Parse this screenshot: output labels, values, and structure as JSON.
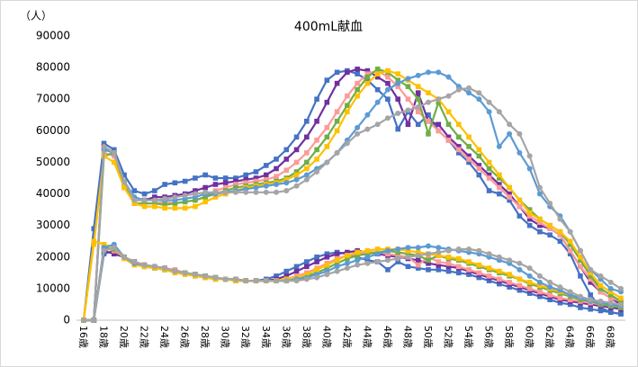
{
  "chart_data": {
    "type": "line",
    "title": "400mL献血",
    "y_label": "（人）",
    "categories": [
      "16歳",
      null,
      "18歳",
      null,
      "20歳",
      null,
      "22歳",
      null,
      "24歳",
      null,
      "26歳",
      null,
      "28歳",
      null,
      "30歳",
      null,
      "32歳",
      null,
      "34歳",
      null,
      "36歳",
      null,
      "38歳",
      null,
      "40歳",
      null,
      "42歳",
      null,
      "44歳",
      null,
      "46歳",
      null,
      "48歳",
      null,
      "50歳",
      null,
      "52歳",
      null,
      "54歳",
      null,
      "56歳",
      null,
      "58歳",
      null,
      "60歳",
      null,
      "62歳",
      null,
      "64歳",
      null,
      "66歳",
      null,
      "68歳",
      null
    ],
    "ylim": [
      0,
      90000
    ],
    "yticks": [
      0,
      10000,
      20000,
      30000,
      40000,
      50000,
      60000,
      70000,
      80000,
      90000
    ],
    "grid": false,
    "series": [
      {
        "color": "#4472c4",
        "marker": "square",
        "values": [
          0,
          29000,
          56000,
          54000,
          46000,
          41000,
          40000,
          41000,
          43000,
          43500,
          44000,
          45000,
          46000,
          45000,
          45000,
          45000,
          46000,
          47000,
          49000,
          51000,
          54000,
          58000,
          63000,
          70000,
          76000,
          78500,
          79000,
          78000,
          76000,
          73000,
          70000,
          60500,
          66000,
          62000,
          65000,
          60000,
          57000,
          53000,
          50000,
          46000,
          41000,
          40000,
          38000,
          33000,
          30000,
          28000,
          27000,
          25000,
          21000,
          14000,
          8000,
          4000,
          2500,
          2000
        ]
      },
      {
        "color": "#7030a0",
        "marker": "square",
        "values": [
          0,
          0,
          55000,
          53000,
          43000,
          38000,
          38000,
          39000,
          39000,
          39500,
          40000,
          41000,
          42000,
          43000,
          43500,
          44000,
          44500,
          45000,
          46000,
          48000,
          51000,
          54000,
          58000,
          63000,
          69000,
          75000,
          78500,
          79500,
          79000,
          77000,
          75000,
          70000,
          62000,
          72000,
          63000,
          62000,
          58000,
          55000,
          52000,
          49000,
          46000,
          43000,
          40000,
          36000,
          32000,
          30000,
          29000,
          27000,
          22000,
          17000,
          12000,
          9000,
          7000,
          5000
        ]
      },
      {
        "color": "#ff9999",
        "marker": "square",
        "values": [
          0,
          0,
          53000,
          52000,
          42000,
          37000,
          37000,
          37000,
          37500,
          37000,
          37500,
          38000,
          39000,
          41000,
          42000,
          43000,
          43500,
          44000,
          44500,
          45500,
          47500,
          50000,
          53000,
          57000,
          61000,
          66000,
          71000,
          75000,
          78000,
          79000,
          77000,
          74000,
          70000,
          66000,
          63000,
          60000,
          57000,
          54000,
          51000,
          48000,
          45000,
          42000,
          39000,
          36000,
          33000,
          31000,
          29000,
          27000,
          22000,
          17000,
          13000,
          9000,
          7000,
          6000
        ]
      },
      {
        "color": "#70ad47",
        "marker": "square",
        "values": [
          0,
          0,
          52000,
          53000,
          43000,
          37000,
          37000,
          37000,
          36500,
          37000,
          37500,
          38000,
          39000,
          40000,
          41000,
          42000,
          42500,
          43000,
          43500,
          44000,
          45000,
          47000,
          50000,
          54000,
          58000,
          63000,
          68000,
          73000,
          77000,
          79500,
          78500,
          76000,
          74000,
          70000,
          59000,
          69000,
          62000,
          58000,
          55000,
          52000,
          48000,
          45000,
          42000,
          38000,
          35000,
          32000,
          30000,
          28000,
          24000,
          19000,
          14000,
          10000,
          8000,
          6000
        ]
      },
      {
        "color": "#ffc000",
        "marker": "square",
        "values": [
          0,
          24000,
          52000,
          50000,
          42000,
          37000,
          36000,
          36000,
          35500,
          35500,
          35500,
          36000,
          37500,
          39000,
          40000,
          41000,
          42000,
          42500,
          43000,
          43500,
          44500,
          46000,
          48000,
          51000,
          55000,
          60000,
          66000,
          71000,
          75000,
          78000,
          79000,
          78000,
          76000,
          74000,
          72000,
          70000,
          66000,
          62000,
          58000,
          54000,
          50000,
          46000,
          42000,
          38000,
          34000,
          32000,
          30000,
          28000,
          25000,
          20000,
          15000,
          11000,
          9000,
          7000
        ]
      },
      {
        "color": "#5b9bd5",
        "marker": "circle",
        "values": [
          0,
          0,
          54000,
          53000,
          44000,
          39000,
          38000,
          38000,
          38000,
          38000,
          38500,
          39000,
          40000,
          40000,
          40500,
          41000,
          41500,
          42000,
          42500,
          43000,
          43500,
          44500,
          46000,
          48000,
          50000,
          53000,
          57000,
          61000,
          65000,
          69000,
          73000,
          75000,
          76500,
          77500,
          78500,
          78500,
          77000,
          74000,
          72000,
          70000,
          66000,
          55000,
          59000,
          53000,
          48000,
          40000,
          36000,
          33000,
          28000,
          22000,
          16000,
          13000,
          10000,
          9000
        ]
      },
      {
        "color": "#a5a5a5",
        "marker": "circle",
        "values": [
          0,
          0,
          55000,
          53000,
          44000,
          38000,
          38000,
          38000,
          38500,
          39000,
          39500,
          40000,
          40500,
          40500,
          40500,
          40500,
          40500,
          40500,
          40500,
          40500,
          41000,
          42500,
          44500,
          47000,
          50000,
          53000,
          56000,
          59000,
          60500,
          62000,
          64000,
          65500,
          66500,
          67500,
          69000,
          70000,
          71000,
          73000,
          73500,
          72000,
          69000,
          66000,
          62000,
          59000,
          52000,
          42000,
          37000,
          32000,
          28000,
          22000,
          16000,
          14000,
          12000,
          10000
        ]
      },
      {
        "color": "#4472c4",
        "marker": "square",
        "values": [
          0,
          0,
          21000,
          22000,
          20000,
          18000,
          17000,
          16500,
          16000,
          15500,
          15000,
          14000,
          13500,
          13000,
          13000,
          12500,
          12500,
          12500,
          13000,
          14000,
          15500,
          17000,
          18500,
          20000,
          21000,
          21500,
          21000,
          20000,
          19000,
          18500,
          16000,
          18500,
          17000,
          16500,
          16000,
          16000,
          15500,
          15000,
          14500,
          13500,
          12500,
          11500,
          10500,
          9500,
          8500,
          7500,
          6500,
          5500,
          5000,
          4000,
          3500,
          3000,
          2500,
          2000
        ]
      },
      {
        "color": "#7030a0",
        "marker": "square",
        "values": [
          0,
          0,
          22000,
          21000,
          20000,
          18500,
          17500,
          17000,
          16500,
          15500,
          15000,
          14500,
          14000,
          13500,
          13000,
          13000,
          12500,
          12500,
          12500,
          13000,
          14000,
          15500,
          17000,
          18500,
          20000,
          21000,
          21500,
          22000,
          21500,
          21000,
          20500,
          20000,
          19500,
          19000,
          18000,
          17500,
          17000,
          16500,
          15500,
          14500,
          13500,
          12500,
          11500,
          10500,
          9500,
          8500,
          7500,
          6500,
          6000,
          5500,
          5000,
          4500,
          4000,
          3500
        ]
      },
      {
        "color": "#ff9999",
        "marker": "square",
        "values": [
          0,
          0,
          23000,
          22000,
          20000,
          18000,
          17500,
          17000,
          16500,
          16000,
          15000,
          14500,
          14000,
          13500,
          13000,
          13000,
          12500,
          12500,
          12500,
          12500,
          13000,
          14000,
          15000,
          16500,
          18000,
          19500,
          20500,
          21000,
          21500,
          21500,
          21000,
          20500,
          20000,
          17500,
          20000,
          18500,
          18000,
          17000,
          16000,
          15000,
          14000,
          13000,
          12000,
          11000,
          10000,
          9000,
          8000,
          7000,
          6500,
          6000,
          5500,
          5000,
          4500,
          4000
        ]
      },
      {
        "color": "#70ad47",
        "marker": "square",
        "values": [
          0,
          0,
          23000,
          22500,
          20000,
          18000,
          17000,
          16500,
          16000,
          15500,
          15000,
          14500,
          14000,
          13500,
          13000,
          12500,
          12500,
          12500,
          12500,
          12500,
          12500,
          13000,
          14000,
          15000,
          16500,
          18000,
          19500,
          20500,
          21000,
          21500,
          22000,
          21500,
          21000,
          20500,
          19000,
          20500,
          19500,
          19000,
          18000,
          17000,
          16000,
          15000,
          14000,
          13000,
          11500,
          10500,
          9500,
          8500,
          7500,
          6500,
          6000,
          5000,
          4500,
          4000
        ]
      },
      {
        "color": "#ffc000",
        "marker": "square",
        "values": [
          0,
          25000,
          24000,
          23000,
          19500,
          17500,
          17000,
          16500,
          16000,
          15000,
          14500,
          14000,
          13500,
          13000,
          13000,
          12500,
          12500,
          12500,
          12500,
          12500,
          13000,
          13500,
          14500,
          16000,
          17500,
          19000,
          20500,
          21500,
          22000,
          22500,
          22500,
          22500,
          22000,
          21500,
          21000,
          20500,
          20000,
          19500,
          18500,
          17500,
          16500,
          15500,
          14500,
          13000,
          12000,
          11000,
          10000,
          9000,
          8000,
          7000,
          6000,
          5500,
          5000,
          4500
        ]
      },
      {
        "color": "#5b9bd5",
        "marker": "circle",
        "values": [
          0,
          0,
          23000,
          24000,
          20000,
          18000,
          17500,
          17000,
          16500,
          15500,
          15000,
          14500,
          14000,
          13500,
          13000,
          13000,
          12500,
          12500,
          12500,
          12500,
          12500,
          13000,
          13500,
          14500,
          15500,
          17000,
          18000,
          19000,
          20000,
          21000,
          22000,
          22500,
          23000,
          23000,
          23500,
          23000,
          22500,
          22000,
          21500,
          21000,
          20000,
          19000,
          18000,
          16000,
          14000,
          12000,
          10500,
          9500,
          8000,
          7000,
          6000,
          5500,
          5000,
          4500
        ]
      },
      {
        "color": "#a5a5a5",
        "marker": "circle",
        "values": [
          0,
          0,
          22000,
          23000,
          20000,
          18500,
          17500,
          17000,
          16500,
          15500,
          15000,
          14500,
          14000,
          13500,
          13000,
          13000,
          12500,
          12500,
          12500,
          12500,
          12500,
          12500,
          13000,
          13500,
          14500,
          15500,
          16500,
          17500,
          18000,
          18500,
          19000,
          19500,
          20000,
          20500,
          21000,
          21500,
          22000,
          22500,
          22500,
          22000,
          21000,
          20000,
          19000,
          18000,
          16500,
          14000,
          12000,
          10500,
          9000,
          7500,
          6500,
          6000,
          5500,
          5000
        ]
      }
    ]
  }
}
